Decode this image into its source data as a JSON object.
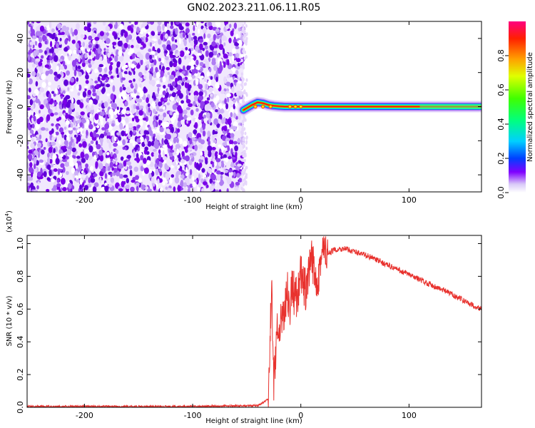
{
  "title": "GN02.2023.211.06.11.R05",
  "chart_data": [
    {
      "type": "heatmap",
      "xlabel": "Height of straight line (km)",
      "ylabel": "Frequency (Hz)",
      "xlim": [
        -253,
        167
      ],
      "ylim": [
        -50,
        50
      ],
      "x_ticks": [
        -200,
        -100,
        0,
        100
      ],
      "y_ticks": [
        -40,
        -20,
        0,
        20,
        40
      ],
      "noise_region_x": [
        -253,
        -53
      ],
      "signal_track": {
        "x": [
          -53,
          -45,
          -40,
          -35,
          -30,
          -25,
          -20,
          -15,
          -10,
          0,
          20,
          60,
          100,
          130,
          167
        ],
        "freq_hz": [
          -2,
          1,
          2.5,
          2,
          1,
          0.5,
          0.2,
          0,
          0,
          0,
          0,
          0,
          0,
          0,
          0
        ],
        "peak_x": [
          -42,
          -35,
          -28,
          -10,
          -5,
          0
        ]
      },
      "colorbar": {
        "label": "Normalized spectral amplitude",
        "range": [
          0,
          1
        ],
        "ticks": [
          0.0,
          0.2,
          0.4,
          0.6,
          0.8
        ]
      }
    },
    {
      "type": "line",
      "xlabel": "Height of straight line (km)",
      "ylabel": "SNR (10 * v/v)",
      "y_multiplier": "(x10",
      "y_multiplier_exp": "4",
      "y_multiplier_close": ")",
      "xlim": [
        -253,
        167
      ],
      "ylim": [
        0,
        1.05
      ],
      "x_ticks": [
        -200,
        -100,
        0,
        100
      ],
      "y_ticks": [
        0.0,
        0.2,
        0.4,
        0.6,
        0.8,
        1.0
      ],
      "line_color": "#e8322e",
      "series": [
        {
          "x": [
            -253,
            -200,
            -100,
            -40,
            -30,
            -27,
            -25,
            -22,
            -20,
            -18,
            -15,
            -12,
            -10,
            -8,
            -5,
            0,
            5,
            10,
            15,
            20,
            25,
            30,
            40,
            50,
            60,
            80,
            100,
            120,
            140,
            160,
            167
          ],
          "values": [
            0.005,
            0.005,
            0.005,
            0.01,
            0.05,
            0.75,
            0.15,
            0.5,
            0.35,
            0.55,
            0.62,
            0.7,
            0.6,
            0.75,
            0.65,
            0.8,
            0.7,
            0.9,
            0.78,
            0.95,
            0.93,
            0.96,
            0.97,
            0.95,
            0.93,
            0.87,
            0.81,
            0.75,
            0.69,
            0.62,
            0.6
          ]
        }
      ]
    }
  ]
}
